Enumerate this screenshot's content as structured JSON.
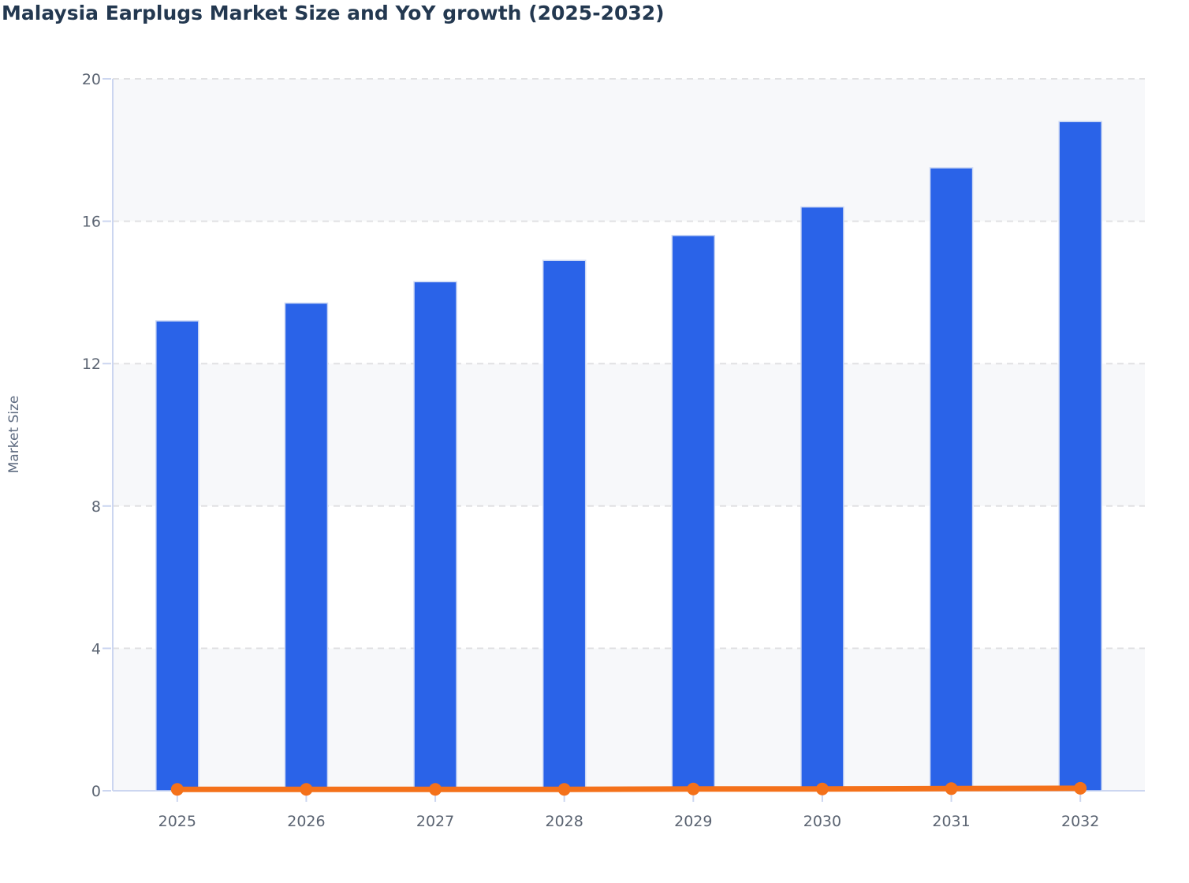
{
  "chart_data": {
    "type": "bar",
    "title": "Malaysia Earplugs Market Size and YoY growth (2025-2032)",
    "xlabel": "",
    "ylabel": "Market Size",
    "categories": [
      "2025",
      "2026",
      "2027",
      "2028",
      "2029",
      "2030",
      "2031",
      "2032"
    ],
    "series": [
      {
        "name": "Market Size",
        "type": "bar",
        "color": "#2a63e8",
        "bar_edge_color": "#ccd8f4",
        "values": [
          13.2,
          13.7,
          14.3,
          14.9,
          15.6,
          16.4,
          17.5,
          18.8
        ]
      },
      {
        "name": "YoY growth",
        "type": "line",
        "color": "#f4711a",
        "marker": "circle",
        "values": [
          0.04,
          0.04,
          0.04,
          0.04,
          0.05,
          0.05,
          0.06,
          0.07
        ]
      }
    ],
    "ylim": [
      0,
      20
    ],
    "ytick_step": 4,
    "yticks": [
      "0",
      "4",
      "8",
      "12",
      "16",
      "20"
    ],
    "grid": "horizontal-dashed",
    "legend": "none",
    "style": {
      "band_fill": "#f7f8fa",
      "band_alt_fill": "#ffffff",
      "grid_color": "#e1e1e3",
      "axis_line_color": "#ccd6f0",
      "tick_mark_color": "#ccd6f0",
      "tick_label_color": "#5b6472",
      "title_color": "#233850",
      "axis_title_color": "#5e6b80"
    }
  }
}
